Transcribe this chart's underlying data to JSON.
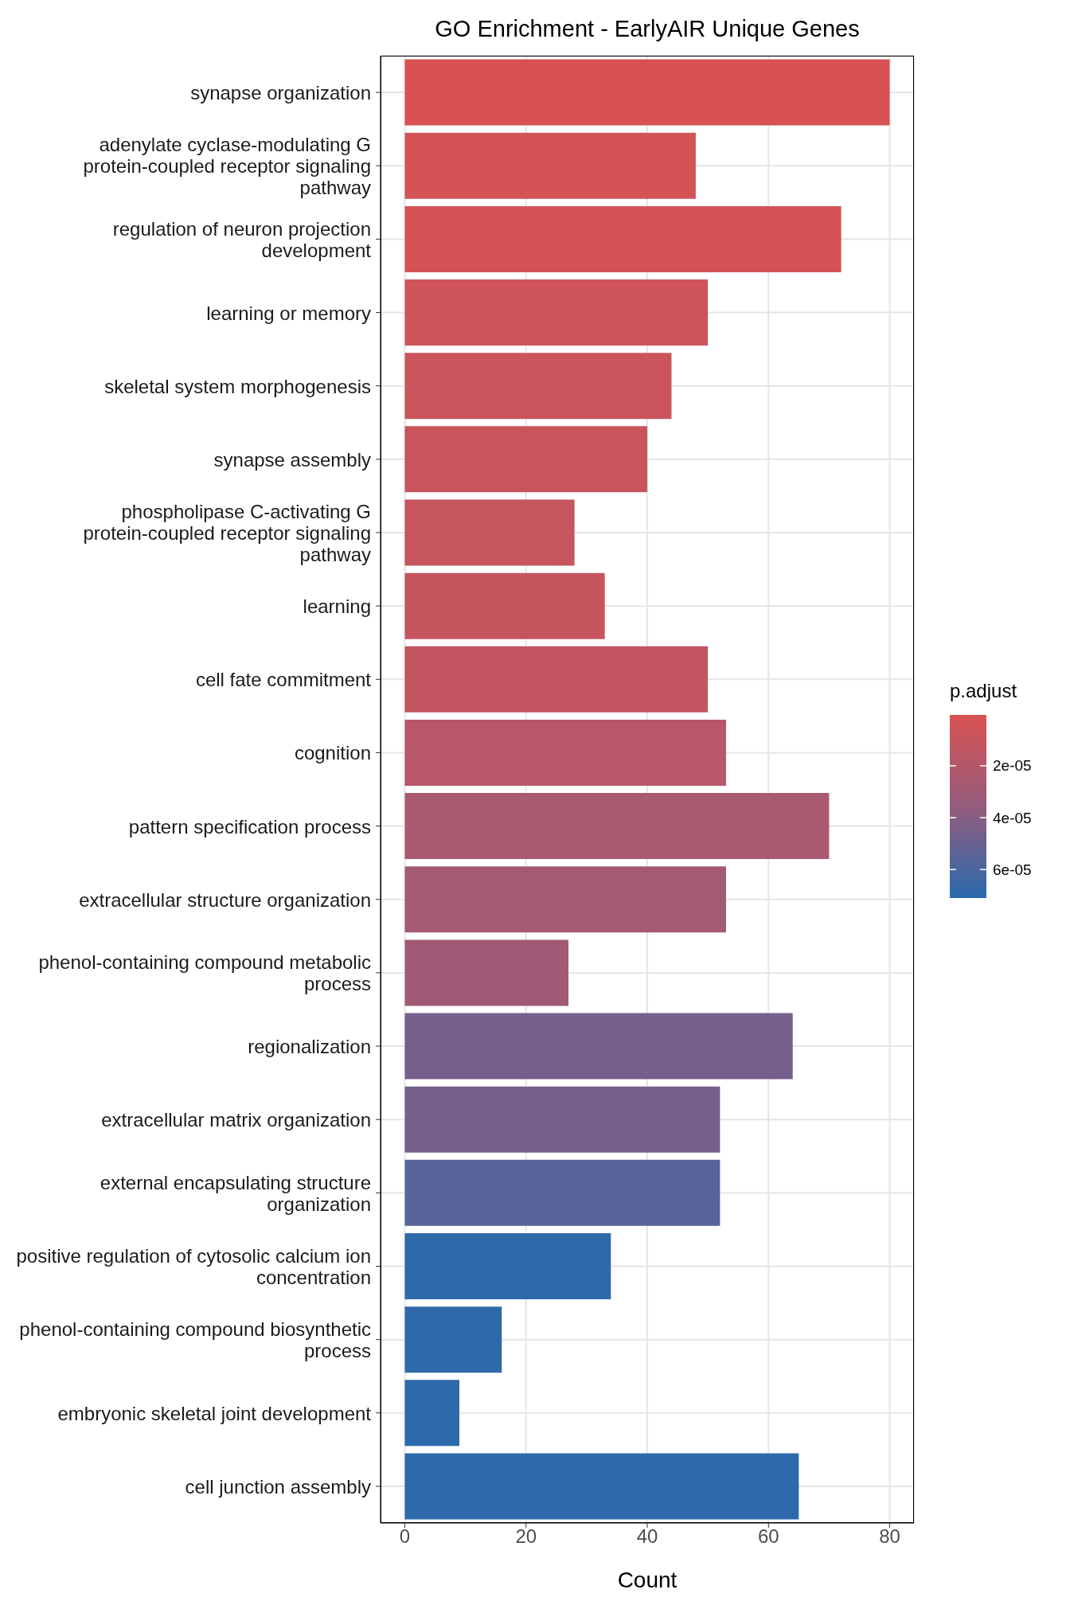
{
  "chart_data": {
    "type": "bar",
    "orientation": "horizontal",
    "title": "GO Enrichment - EarlyAIR Unique Genes",
    "xlabel": "Count",
    "clabel": "p.adjust",
    "categories": [
      "synapse organization",
      "adenylate cyclase-modulating G protein-coupled receptor signaling pathway",
      "regulation of neuron projection development",
      "learning or memory",
      "skeletal system morphogenesis",
      "synapse assembly",
      "phospholipase C-activating G protein-coupled receptor signaling pathway",
      "learning",
      "cell fate commitment",
      "cognition",
      "pattern specification process",
      "extracellular structure organization",
      "phenol-containing compound metabolic process",
      "regionalization",
      "extracellular matrix organization",
      "external encapsulating structure organization",
      "positive regulation of cytosolic calcium ion concentration",
      "phenol-containing compound biosynthetic process",
      "embryonic skeletal joint development",
      "cell junction assembly"
    ],
    "values": [
      80,
      48,
      72,
      50,
      44,
      40,
      28,
      33,
      50,
      53,
      70,
      53,
      27,
      64,
      52,
      52,
      34,
      16,
      9,
      65
    ],
    "cvalues": [
      1e-06,
      3e-06,
      3e-06,
      6e-06,
      8e-06,
      9e-06,
      1e-05,
      1.1e-05,
      1.2e-05,
      1.8e-05,
      2.5e-05,
      2.8e-05,
      2.9e-05,
      4.6e-05,
      4.6e-05,
      5.6e-05,
      6.9e-05,
      6.9e-05,
      7e-05,
      7e-05
    ],
    "clim": [
      4e-07,
      7.1e-05
    ],
    "cticks": [
      {
        "value": 2e-05,
        "label": "2e-05"
      },
      {
        "value": 4e-05,
        "label": "4e-05"
      },
      {
        "value": 6e-05,
        "label": "6e-05"
      }
    ],
    "xlim": [
      -4,
      84
    ],
    "xticks": [
      0,
      20,
      40,
      60,
      80
    ],
    "grid": true
  }
}
